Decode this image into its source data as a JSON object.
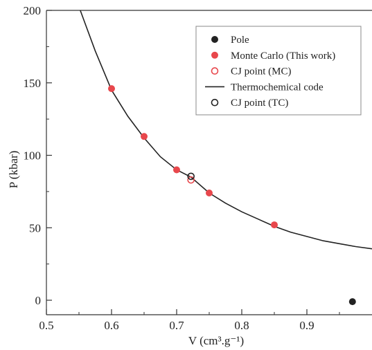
{
  "chart_data": {
    "type": "scatter",
    "xlim": [
      0.5,
      1.0
    ],
    "ylim": [
      -10,
      200
    ],
    "x_ticks": [
      "0.5",
      "0.6",
      "0.7",
      "0.8",
      "0.9"
    ],
    "y_ticks": [
      "0",
      "50",
      "100",
      "150",
      "200"
    ],
    "x_tick_values": [
      0.5,
      0.6,
      0.7,
      0.8,
      0.9
    ],
    "y_tick_values": [
      0,
      50,
      100,
      150,
      200
    ],
    "xlabel": "V (cm³.g⁻¹)",
    "ylabel": "P (kbar)",
    "legend_position": "top-right",
    "colors": {
      "monte_carlo": "#e8474c",
      "pole": "#222222",
      "curve": "#222222"
    },
    "series": [
      {
        "name": "Pole",
        "marker": "filled-circle",
        "color": "#222222",
        "x": [
          0.97
        ],
        "y": [
          -1
        ]
      },
      {
        "name": "Monte Carlo (This work)",
        "marker": "filled-circle",
        "color": "#e8474c",
        "x": [
          0.6,
          0.65,
          0.7,
          0.75,
          0.85
        ],
        "y": [
          146,
          113,
          90,
          74,
          52
        ]
      },
      {
        "name": "CJ point (MC)",
        "marker": "open-circle",
        "color": "#e8474c",
        "x": [
          0.722
        ],
        "y": [
          83
        ]
      },
      {
        "name": "Thermochemical code",
        "marker": "line",
        "color": "#222222",
        "x": [
          0.552,
          0.575,
          0.6,
          0.625,
          0.65,
          0.675,
          0.7,
          0.722,
          0.75,
          0.775,
          0.8,
          0.825,
          0.85,
          0.875,
          0.9,
          0.925,
          0.95,
          0.975,
          1.0
        ],
        "y": [
          200,
          172,
          145,
          127,
          112,
          99,
          90,
          85,
          74,
          67,
          61,
          56,
          51,
          47,
          44,
          41,
          39,
          37,
          35.5
        ]
      },
      {
        "name": "CJ point (TC)",
        "marker": "open-circle",
        "color": "#222222",
        "x": [
          0.722
        ],
        "y": [
          85.5
        ]
      }
    ]
  }
}
